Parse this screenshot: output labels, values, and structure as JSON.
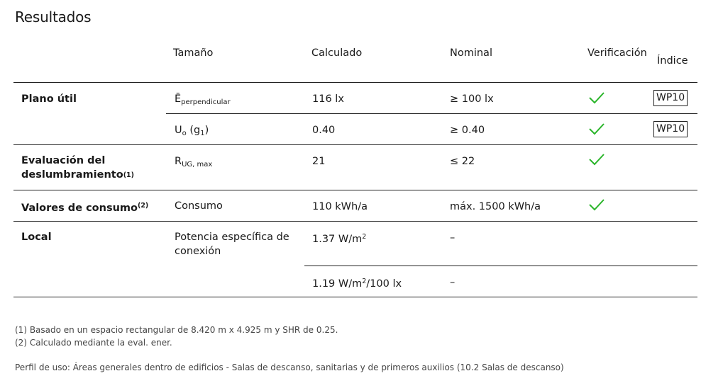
{
  "title": "Resultados",
  "headers": {
    "size": "Tamaño",
    "calculated": "Calculado",
    "nominal": "Nominal",
    "verification": "Verificación",
    "index": "Índice"
  },
  "rows": [
    {
      "group": "Plano útil",
      "size_main": "Ē",
      "size_sub": "perpendicular",
      "calculated": "116 lx",
      "nominal": "≥ 100 lx",
      "verified": true,
      "index": "WP10"
    },
    {
      "size_main": "U",
      "size_sub": "o",
      "size_suffix_open": " (g",
      "size_suffix_sub": "1",
      "size_suffix_close": ")",
      "calculated": "0.40",
      "nominal": "≥ 0.40",
      "verified": true,
      "index": "WP10"
    },
    {
      "group_line1": "Evaluación del",
      "group_line2": "deslumbramiento",
      "group_note": "(1)",
      "size_main": "R",
      "size_sub": "UG, max",
      "calculated": "21",
      "nominal": "≤ 22",
      "verified": true
    },
    {
      "group": "Valores de consumo",
      "group_note": "(2)",
      "size": "Consumo",
      "calculated": "110 kWh/a",
      "nominal": "máx. 1500 kWh/a",
      "verified": true
    },
    {
      "group": "Local",
      "size_line1": "Potencia específica de",
      "size_line2": "conexión",
      "calculated_a": "1.37 W/m",
      "calculated_a_sup": "2",
      "nominal_a": "–",
      "calculated_b_pre": "1.19 W/m",
      "calculated_b_sup": "2",
      "calculated_b_post": "/100 lx",
      "nominal_b": "–"
    }
  ],
  "footnotes": [
    "(1) Basado en un espacio rectangular de 8.420 m x 4.925 m y SHR de 0.25.",
    "(2) Calculado mediante la eval. ener."
  ],
  "usage_profile": "Perfil de uso: Áreas generales dentro de edificios - Salas de descanso, sanitarias y de primeros auxilios (10.2 Salas de descanso)",
  "colors": {
    "check": "#2bb52b",
    "rule": "#222222"
  },
  "icons": {
    "verified": "check-icon"
  }
}
